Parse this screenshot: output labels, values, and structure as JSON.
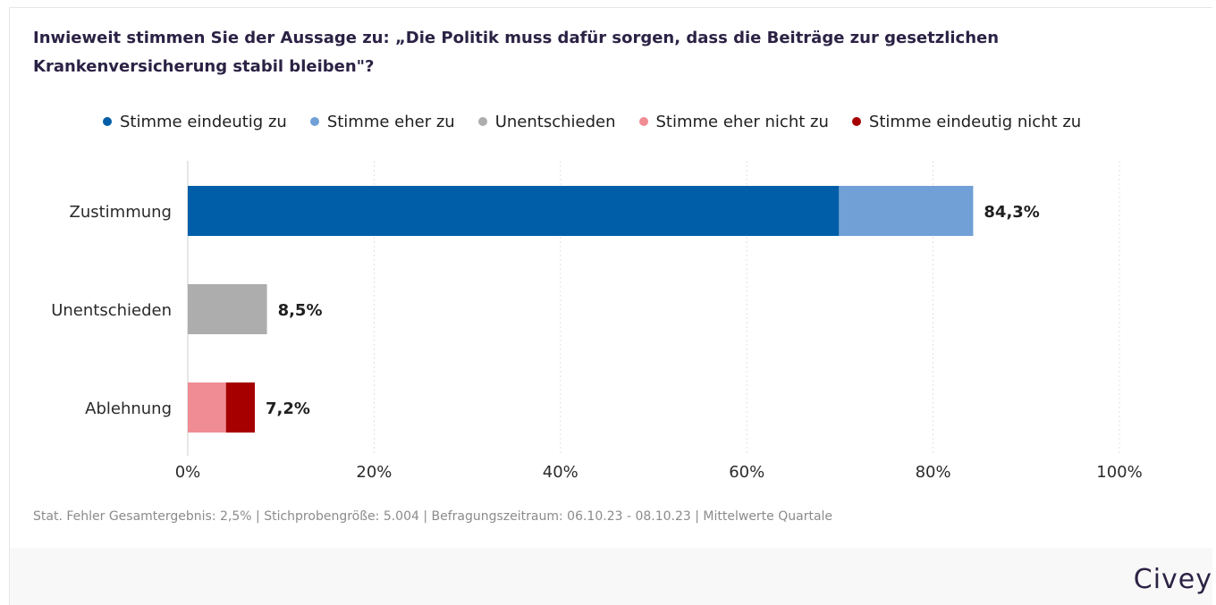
{
  "chart_data": {
    "type": "bar",
    "orientation": "horizontal",
    "stacked": true,
    "title": "Inwieweit stimmen Sie der Aussage zu: „Die Politik muss dafür sorgen, dass die Beiträge zur gesetzlichen Krankenversicherung stabil bleiben\"?",
    "categories": [
      "Zustimmung",
      "Unentschieden",
      "Ablehnung"
    ],
    "series": [
      {
        "name": "Stimme eindeutig zu",
        "color": "#005ea8",
        "values": [
          69.9,
          0,
          0
        ]
      },
      {
        "name": "Stimme eher zu",
        "color": "#70a0d5",
        "values": [
          14.4,
          0,
          0
        ]
      },
      {
        "name": "Unentschieden",
        "color": "#adadad",
        "values": [
          0,
          8.5,
          0
        ]
      },
      {
        "name": "Stimme eher nicht zu",
        "color": "#f08c94",
        "values": [
          0,
          0,
          4.1
        ]
      },
      {
        "name": "Stimme eindeutig nicht zu",
        "color": "#a70000",
        "values": [
          0,
          0,
          3.1
        ]
      }
    ],
    "totals": [
      "84,3%",
      "8,5%",
      "7,2%"
    ],
    "total_values": [
      84.3,
      8.5,
      7.2
    ],
    "xlim": [
      0,
      100
    ],
    "xticks": [
      0,
      20,
      40,
      60,
      80,
      100
    ],
    "xtick_labels": [
      "0%",
      "20%",
      "40%",
      "60%",
      "80%",
      "100%"
    ],
    "grid": "vertical",
    "legend_position": "top"
  },
  "footnote": "Stat. Fehler Gesamtergebnis: 2,5% | Stichprobengröße: 5.004 | Befragungszeitraum: 06.10.23 - 08.10.23 | Mittelwerte Quartale",
  "brand": "Civey"
}
